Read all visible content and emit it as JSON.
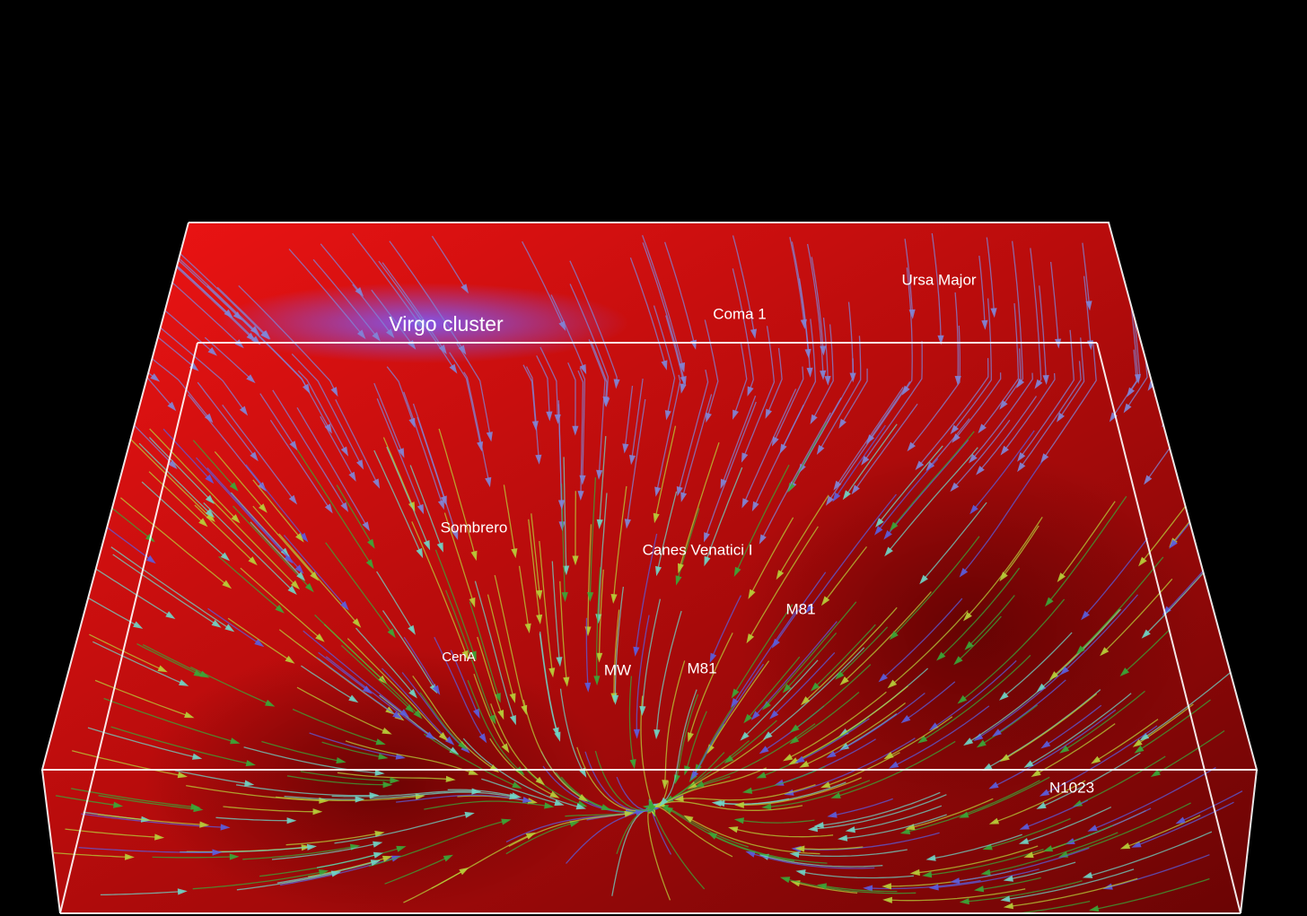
{
  "labels": [
    "Virgo cluster",
    "Coma 1",
    "Ursa Major",
    "Sombrero",
    "Canes Venatici I",
    "M81",
    "CenA",
    "MW",
    "M81",
    "N1023"
  ]
}
